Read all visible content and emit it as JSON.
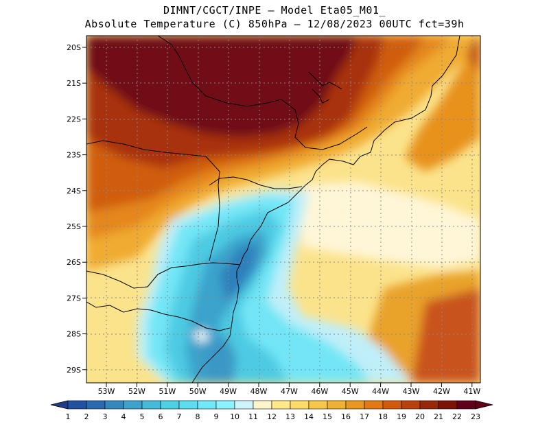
{
  "header": {
    "line1": "DIMNT/CGCT/INPE –  Model Eta05_M01_",
    "line2": "Absolute Temperature (C) 850hPa –  12/08/2023 00UTC fct=39h"
  },
  "axes": {
    "lat_labels": [
      "20S",
      "21S",
      "22S",
      "23S",
      "24S",
      "25S",
      "26S",
      "27S",
      "28S",
      "29S"
    ],
    "lon_labels": [
      "53W",
      "52W",
      "51W",
      "50W",
      "49W",
      "48W",
      "47W",
      "46W",
      "45W",
      "44W",
      "43W",
      "42W",
      "41W"
    ]
  },
  "colorbar": {
    "labels": [
      "1",
      "2",
      "3",
      "4",
      "5",
      "6",
      "7",
      "8",
      "9",
      "10",
      "11",
      "12",
      "13",
      "14",
      "15",
      "16",
      "17",
      "18",
      "19",
      "20",
      "21",
      "22",
      "23"
    ],
    "colors": [
      "#1e3c8c",
      "#21519f",
      "#2a6ab0",
      "#3488be",
      "#3ea2cc",
      "#46bad8",
      "#4fcfe4",
      "#5fdcee",
      "#72e8f6",
      "#8df2fb",
      "#cff4fb",
      "#fff5cc",
      "#ffe98a",
      "#fddb6a",
      "#f7c74c",
      "#efb133",
      "#e89722",
      "#e07a18",
      "#d15c10",
      "#b8420e",
      "#97290b",
      "#7a1409",
      "#600018"
    ]
  }
}
